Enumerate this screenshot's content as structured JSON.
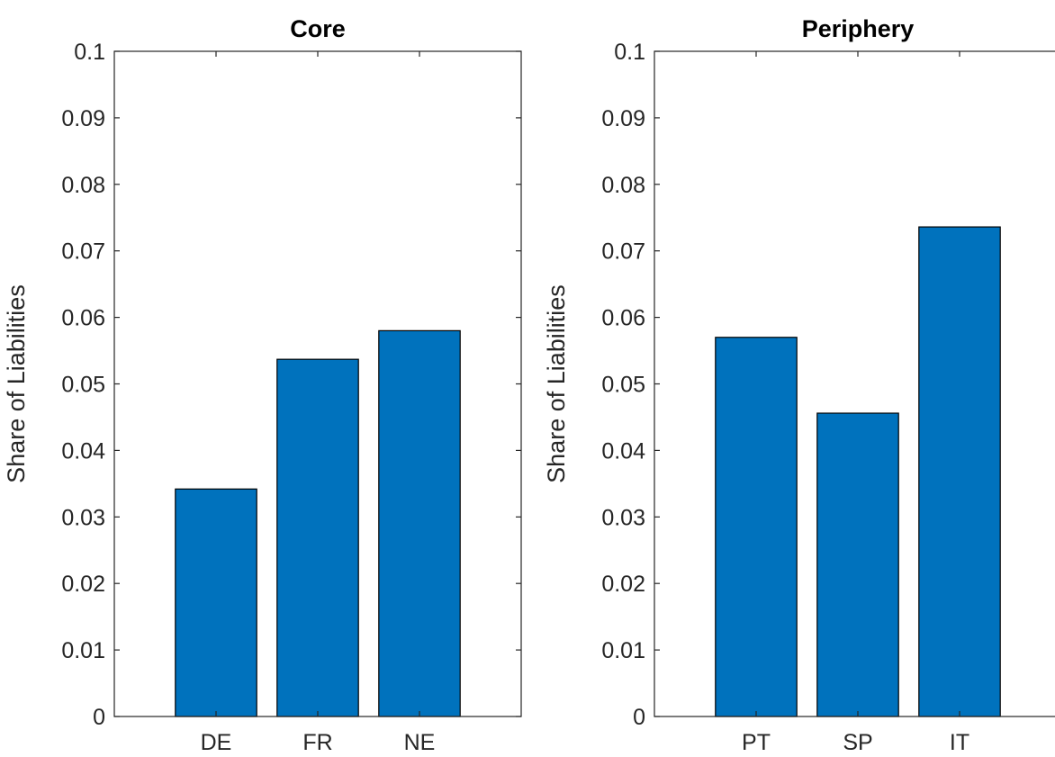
{
  "chart_data": [
    {
      "type": "bar",
      "title": "Core",
      "xlabel": "",
      "ylabel": "Share of Liabilities",
      "categories": [
        "DE",
        "FR",
        "NE"
      ],
      "values": [
        0.0342,
        0.0537,
        0.058
      ],
      "ylim": [
        0,
        0.1
      ],
      "yticks": [
        "0",
        "0.01",
        "0.02",
        "0.03",
        "0.04",
        "0.05",
        "0.06",
        "0.07",
        "0.08",
        "0.09",
        "0.1"
      ],
      "grid": false,
      "bar_color": "#0072BD"
    },
    {
      "type": "bar",
      "title": "Periphery",
      "xlabel": "",
      "ylabel": "Share of Liabilities",
      "categories": [
        "PT",
        "SP",
        "IT"
      ],
      "values": [
        0.057,
        0.0456,
        0.0736
      ],
      "ylim": [
        0,
        0.1
      ],
      "yticks": [
        "0",
        "0.01",
        "0.02",
        "0.03",
        "0.04",
        "0.05",
        "0.06",
        "0.07",
        "0.08",
        "0.09",
        "0.1"
      ],
      "grid": false,
      "bar_color": "#0072BD"
    }
  ]
}
